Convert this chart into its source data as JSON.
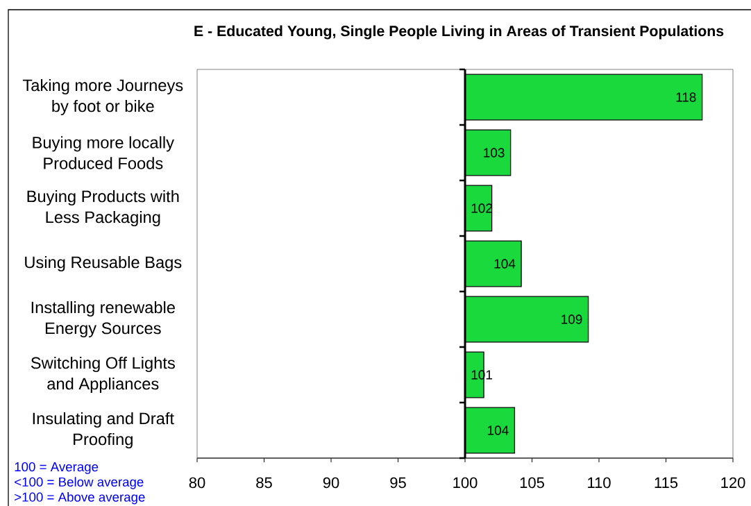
{
  "chart_data": {
    "type": "bar",
    "orientation": "horizontal",
    "title": "E - Educated Young, Single People Living in Areas of Transient Populations",
    "categories": [
      "Taking more Journeys by foot or bike",
      "Buying more locally Produced Foods",
      "Buying Products with Less Packaging",
      "Using Reusable Bags",
      "Installing renewable Energy Sources",
      "Switching Off Lights and Appliances",
      "Insulating and Draft Proofing"
    ],
    "base": [
      100,
      100,
      100,
      100,
      100,
      100,
      100
    ],
    "values": [
      17.7,
      3.4,
      2.0,
      4.2,
      9.2,
      1.4,
      3.7
    ],
    "value_labels": [
      "118",
      "103",
      "102",
      "104",
      "109",
      "101",
      "104"
    ],
    "color": "#1ad93c",
    "xlim": [
      80,
      120
    ],
    "xticks": [
      80,
      85,
      90,
      95,
      100,
      105,
      110,
      115,
      120
    ],
    "annotations": [
      "100 = Average",
      "<100 = Below average",
      ">100 = Above average"
    ]
  }
}
